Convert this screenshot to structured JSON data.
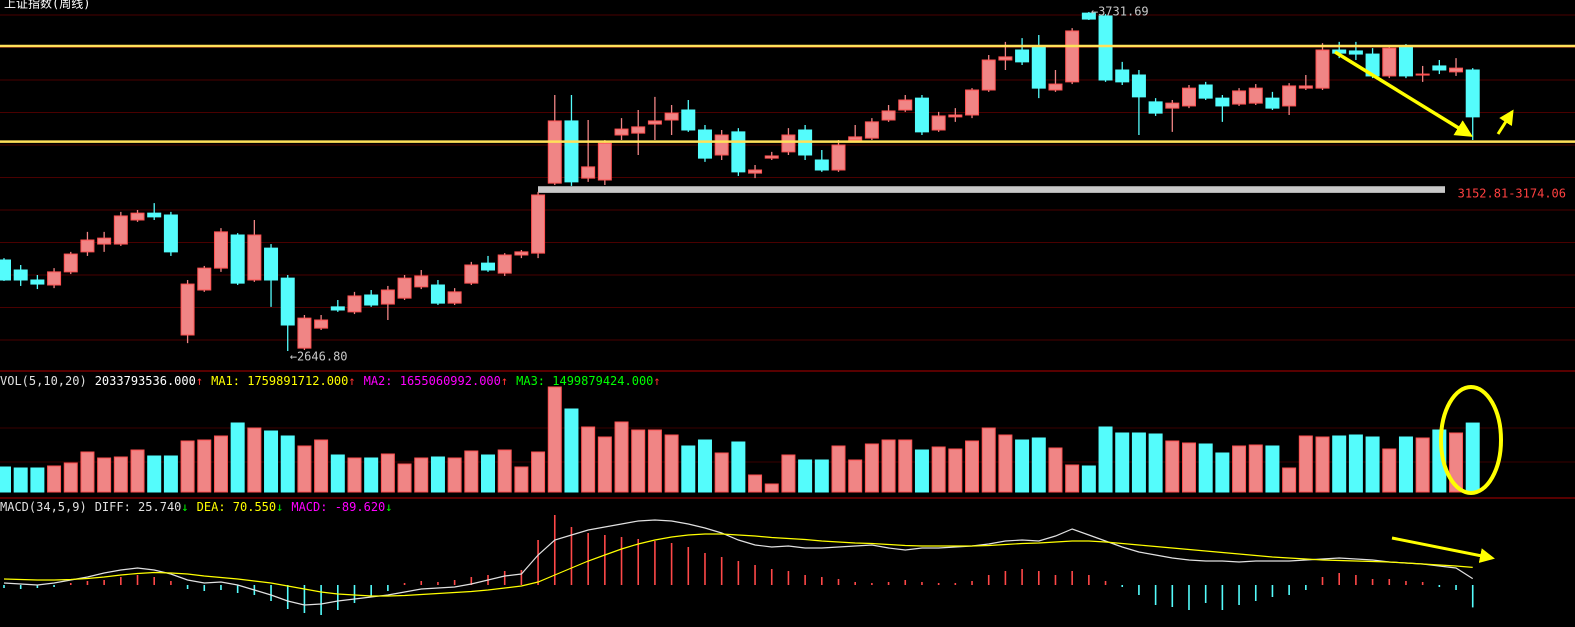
{
  "chart_data": [
    {
      "type": "candlestick",
      "title": "上证指数(周线)",
      "open": [
        2938,
        2906,
        2874,
        2858,
        2900,
        2964,
        2989,
        2989,
        3066,
        3088,
        3082,
        2698,
        2842,
        2912,
        3018,
        2874,
        2976,
        2880,
        2656,
        2720,
        2788,
        2772,
        2826,
        2797,
        2816,
        2852,
        2858,
        2800,
        2864,
        2928,
        2896,
        2954,
        2960,
        3184,
        3383,
        3200,
        3194,
        3338,
        3344,
        3373,
        3386,
        3418,
        3354,
        3274,
        3348,
        3216,
        3264,
        3284,
        3354,
        3258,
        3226,
        3322,
        3328,
        3386,
        3418,
        3456,
        3354,
        3396,
        3402,
        3482,
        3578,
        3610,
        3623,
        3482,
        3508,
        3728,
        3719,
        3546,
        3530,
        3444,
        3424,
        3431,
        3498,
        3456,
        3437,
        3440,
        3456,
        3431,
        3488,
        3488,
        3610,
        3607,
        3597,
        3527,
        3623,
        3530,
        3559,
        3540,
        3546
      ],
      "high": [
        2944,
        2922,
        2890,
        2912,
        2964,
        3028,
        3028,
        3092,
        3098,
        3120,
        3092,
        2874,
        2919,
        3040,
        3024,
        3066,
        2989,
        2890,
        2762,
        2762,
        2810,
        2836,
        2842,
        2855,
        2890,
        2906,
        2874,
        2848,
        2932,
        2951,
        2960,
        2970,
        3156,
        3466,
        3466,
        3386,
        3322,
        3392,
        3418,
        3460,
        3434,
        3450,
        3370,
        3354,
        3360,
        3242,
        3284,
        3360,
        3370,
        3290,
        3322,
        3370,
        3392,
        3434,
        3466,
        3466,
        3412,
        3424,
        3488,
        3594,
        3636,
        3648,
        3658,
        3546,
        3680,
        3731.69,
        3725,
        3572,
        3546,
        3456,
        3450,
        3498,
        3508,
        3466,
        3488,
        3501,
        3476,
        3504,
        3530,
        3632,
        3636,
        3636,
        3616,
        3626,
        3629,
        3559,
        3578,
        3584,
        3552
      ],
      "low": [
        2871,
        2855,
        2845,
        2848,
        2893,
        2951,
        2964,
        2983,
        3060,
        3066,
        2951,
        2672,
        2836,
        2900,
        2858,
        2868,
        2788,
        2646.8,
        2650,
        2714,
        2772,
        2765,
        2788,
        2746,
        2810,
        2845,
        2794,
        2794,
        2858,
        2900,
        2887,
        2944,
        2944,
        3178,
        3175,
        3188,
        3178,
        3322,
        3274,
        3322,
        3338,
        3348,
        3252,
        3258,
        3207,
        3200,
        3258,
        3274,
        3258,
        3220,
        3220,
        3316,
        3322,
        3380,
        3412,
        3338,
        3348,
        3380,
        3392,
        3476,
        3546,
        3562,
        3456,
        3476,
        3501,
        3706,
        3508,
        3498,
        3338,
        3399,
        3348,
        3424,
        3450,
        3380,
        3431,
        3434,
        3418,
        3402,
        3482,
        3482,
        3584,
        3578,
        3520,
        3520,
        3520,
        3508,
        3533,
        3527,
        3322
      ],
      "close": [
        2874,
        2874,
        2861,
        2900,
        2957,
        3002,
        3008,
        3079,
        3088,
        3076,
        2964,
        2861,
        2912,
        3028,
        2864,
        3018,
        2874,
        2730,
        2752,
        2746,
        2778,
        2823,
        2794,
        2842,
        2880,
        2887,
        2800,
        2836,
        2922,
        2906,
        2954,
        2964,
        3146,
        3383,
        3188,
        3236,
        3312,
        3357,
        3364,
        3383,
        3408,
        3354,
        3264,
        3338,
        3220,
        3226,
        3271,
        3338,
        3274,
        3226,
        3306,
        3332,
        3380,
        3415,
        3450,
        3348,
        3399,
        3402,
        3482,
        3578,
        3588,
        3572,
        3488,
        3501,
        3671,
        3709,
        3514,
        3508,
        3460,
        3408,
        3440,
        3488,
        3456,
        3431,
        3479,
        3488,
        3424,
        3495,
        3495,
        3610,
        3600,
        3597,
        3527,
        3616,
        3527,
        3533,
        3546,
        3552,
        3396
      ],
      "ylim": [
        2586,
        3770
      ],
      "up_color": "#f08585",
      "down_color": "#54fcfc",
      "annotations": [
        {
          "value": 3731.69,
          "label": "←3731.69"
        },
        {
          "value": 2646.8,
          "label": "←2646.80"
        }
      ],
      "support_lines": {
        "values": [
          3623,
          3317
        ],
        "color": "#ffe15a"
      },
      "range_band": {
        "from": 3152.81,
        "to": 3174.06,
        "label": "3152.81-3174.06",
        "color": "#c8c8c8"
      }
    },
    {
      "type": "bar",
      "name": "VOL(5,10,20)",
      "values": [
        737500000,
        708000000,
        708000000,
        767000000,
        855500000,
        1180000000,
        1003000000,
        1032500000,
        1239000000,
        1062000000,
        1062000000,
        1504500000,
        1534000000,
        1652000000,
        2035500000,
        1888000000,
        1799500000,
        1652000000,
        1357000000,
        1534000000,
        1091500000,
        1003000000,
        1003000000,
        1121000000,
        826000000,
        1003000000,
        1032500000,
        1003000000,
        1209500000,
        1091500000,
        1239000000,
        737500000,
        1180000000,
        3097500000,
        2448500000,
        1917500000,
        1622500000,
        2065000000,
        1829000000,
        1829000000,
        1681500000,
        1357000000,
        1534000000,
        1150500000,
        1475000000,
        501500000,
        236000000,
        1091500000,
        944000000,
        944000000,
        1357000000,
        944000000,
        1416000000,
        1534000000,
        1534000000,
        1239000000,
        1327500000,
        1268500000,
        1504500000,
        1888000000,
        1681500000,
        1534000000,
        1593000000,
        1298000000,
        796500000,
        767000000,
        1917500000,
        1740500000,
        1740500000,
        1711000000,
        1504500000,
        1445500000,
        1416000000,
        1150500000,
        1357000000,
        1386500000,
        1357000000,
        708000000,
        1652000000,
        1622500000,
        1652000000,
        1681500000,
        1622500000,
        1268500000,
        1622500000,
        1593000000,
        1829000000,
        1740500000,
        2033793536
      ],
      "ylim": [
        0,
        3510500000
      ],
      "legend": [
        {
          "text": "2033793536.000",
          "arrow": "↑",
          "color": "#ffffff"
        },
        {
          "text": "MA1: 1759891712.000",
          "arrow": "↑",
          "color": "#ffff00"
        },
        {
          "text": "MA2: 1655060992.000",
          "arrow": "↑",
          "color": "#ff00ff"
        },
        {
          "text": "MA3: 1499879424.000",
          "arrow": "↑",
          "color": "#00ff00"
        }
      ],
      "arrow_color": "#ff3030"
    },
    {
      "type": "macd",
      "name": "MACD(34,5,9)",
      "values": [
        -12,
        -16,
        -12,
        -8,
        8,
        16,
        20,
        32,
        40,
        32,
        16,
        -16,
        -24,
        -20,
        -32,
        -40,
        -64,
        -96,
        -112,
        -120,
        -100,
        -72,
        -48,
        -24,
        8,
        16,
        12,
        20,
        32,
        40,
        56,
        60,
        180,
        280,
        232,
        208,
        200,
        192,
        184,
        176,
        168,
        152,
        128,
        112,
        96,
        80,
        64,
        56,
        40,
        32,
        24,
        12,
        8,
        12,
        20,
        12,
        8,
        8,
        16,
        40,
        56,
        64,
        56,
        40,
        56,
        40,
        16,
        -8,
        -40,
        -80,
        -88,
        -100,
        -72,
        -100,
        -80,
        -64,
        -48,
        -40,
        -20,
        32,
        48,
        40,
        24,
        24,
        16,
        12,
        -8,
        -20,
        -89.62
      ],
      "series": [
        {
          "color": "#e0e0e0",
          "values": [
            8,
            4,
            0,
            8,
            20,
            32,
            48,
            60,
            68,
            60,
            44,
            20,
            8,
            12,
            0,
            -20,
            -40,
            -64,
            -80,
            -76,
            -64,
            -56,
            -48,
            -40,
            -28,
            -16,
            -12,
            -8,
            4,
            20,
            36,
            44,
            120,
            180,
            200,
            220,
            232,
            244,
            256,
            260,
            256,
            244,
            228,
            208,
            180,
            160,
            152,
            156,
            148,
            148,
            152,
            156,
            160,
            148,
            140,
            148,
            148,
            152,
            156,
            164,
            176,
            180,
            176,
            196,
            224,
            200,
            176,
            152,
            132,
            120,
            108,
            100,
            96,
            96,
            92,
            96,
            96,
            96,
            100,
            104,
            108,
            104,
            100,
            92,
            88,
            84,
            76,
            68,
            25.74
          ]
        },
        {
          "color": "#ffff00",
          "values": [
            24,
            22,
            20,
            20,
            22,
            26,
            32,
            40,
            46,
            50,
            48,
            44,
            36,
            30,
            24,
            16,
            8,
            -4,
            -16,
            -28,
            -36,
            -40,
            -44,
            -44,
            -42,
            -38,
            -34,
            -30,
            -26,
            -20,
            -12,
            -4,
            12,
            40,
            68,
            96,
            120,
            144,
            164,
            180,
            192,
            200,
            204,
            204,
            200,
            196,
            190,
            186,
            182,
            176,
            172,
            168,
            166,
            162,
            158,
            156,
            156,
            156,
            156,
            158,
            162,
            166,
            168,
            172,
            176,
            176,
            172,
            166,
            160,
            154,
            148,
            142,
            136,
            130,
            124,
            118,
            112,
            108,
            104,
            100,
            98,
            96,
            94,
            92,
            88,
            84,
            80,
            76,
            70.55
          ]
        }
      ],
      "ylim": [
        -156,
        340
      ],
      "up_color": "#ff4848",
      "down_color": "#54fcfc",
      "legend": [
        {
          "text": "DIFF: 25.740",
          "arrow": "↓",
          "color": "#e0e0e0"
        },
        {
          "text": "DEA: 70.550",
          "arrow": "↓",
          "color": "#ffff00"
        },
        {
          "text": "MACD: -89.620",
          "arrow": "↓",
          "color": "#ff00ff"
        }
      ],
      "arrow_color": "#00ff00"
    }
  ]
}
